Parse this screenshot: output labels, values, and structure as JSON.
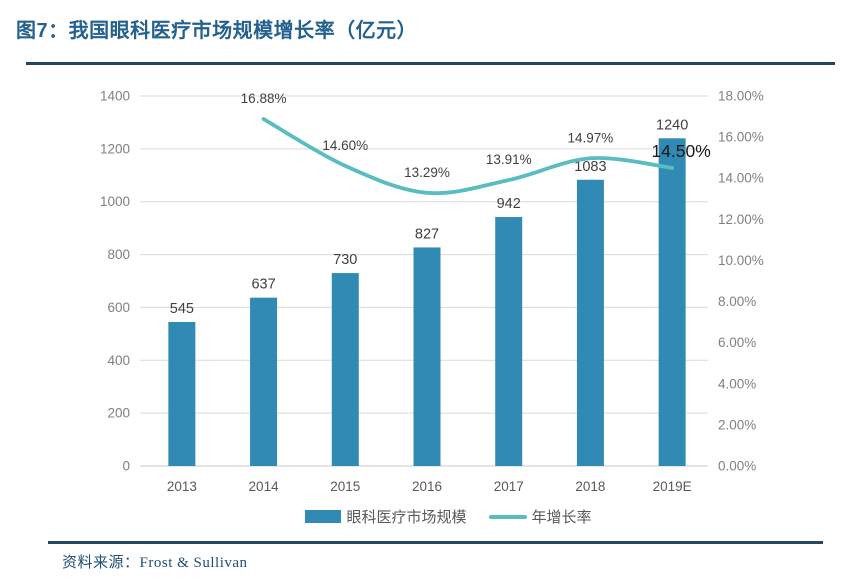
{
  "figure": {
    "title": "图7：我国眼科医疗市场规模增长率（亿元）",
    "source_label": "资料来源：",
    "source_value": "Frost & Sullivan"
  },
  "colors": {
    "bar": "#318AB4",
    "line": "#58BCC0",
    "title_text": "#24618E",
    "rule": "#24465E",
    "grid": "#D9D9D9",
    "axis_line": "#C9C9C9",
    "axis_text": "#808080",
    "year_text": "#595959",
    "label_text": "#404040",
    "emphasis_text": "#1A1A1A",
    "source_text": "#1F4E79"
  },
  "chart_data": {
    "type": "bar+line combo",
    "title": "图7：我国眼科医疗市场规模增长率（亿元）",
    "categories": [
      "2013",
      "2014",
      "2015",
      "2016",
      "2017",
      "2018",
      "2019E"
    ],
    "series": [
      {
        "name": "眼科医疗市场规模",
        "type": "bar",
        "axis": "left",
        "values": [
          545,
          637,
          730,
          827,
          942,
          1083,
          1240
        ],
        "value_labels": [
          "545",
          "637",
          "730",
          "827",
          "942",
          "1083",
          "1240"
        ]
      },
      {
        "name": "年增长率",
        "type": "line",
        "axis": "right",
        "values": [
          null,
          16.88,
          14.6,
          13.29,
          13.91,
          14.97,
          14.5
        ],
        "value_labels": [
          null,
          "16.88%",
          "14.60%",
          "13.29%",
          "13.91%",
          "14.97%",
          "14.50%"
        ]
      }
    ],
    "left_axis": {
      "min": 0,
      "max": 1400,
      "step": 200,
      "ticks": [
        "0",
        "200",
        "400",
        "600",
        "800",
        "1000",
        "1200",
        "1400"
      ]
    },
    "right_axis": {
      "min": 0,
      "max": 18,
      "step": 2,
      "ticks": [
        "0.00%",
        "2.00%",
        "4.00%",
        "6.00%",
        "8.00%",
        "10.00%",
        "12.00%",
        "14.00%",
        "16.00%",
        "18.00%"
      ]
    },
    "grid": true,
    "legend_position": "bottom",
    "emphasized_label": "14.50%",
    "source": "资料来源：Frost & Sullivan"
  }
}
